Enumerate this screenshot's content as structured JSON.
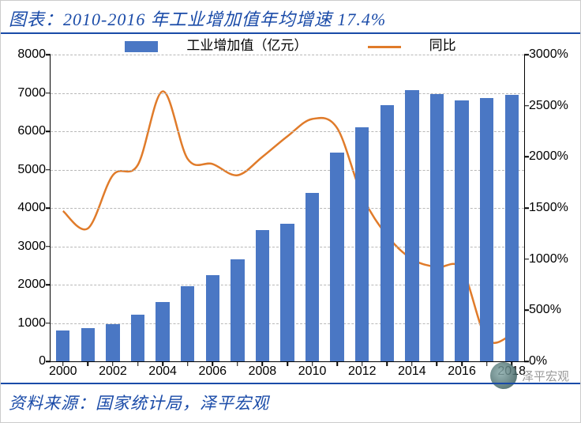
{
  "title": "图表：2010-2016 年工业增加值年均增速 17.4%",
  "source": "资料来源：国家统计局，泽平宏观",
  "watermark": "泽平宏观",
  "legend": {
    "bar_label": "工业增加值（亿元）",
    "line_label": "同比"
  },
  "chart": {
    "type": "bar+line-dual-axis",
    "background_color": "#ffffff",
    "grid_color": "#b8b8b8",
    "axis_color": "#000000",
    "bar_color": "#4a77c4",
    "line_color": "#e07b2a",
    "line_width": 2.5,
    "bar_width_ratio": 0.55,
    "title_color": "#1a4ba8",
    "font_family_axes": "Arial, sans-serif",
    "axis_fontsize": 16,
    "x": {
      "categories": [
        "2000",
        "2001",
        "2002",
        "2003",
        "2004",
        "2005",
        "2006",
        "2007",
        "2008",
        "2009",
        "2010",
        "2011",
        "2012",
        "2013",
        "2014",
        "2015",
        "2016",
        "2017",
        "2018"
      ],
      "tick_labels": [
        "2000",
        "2002",
        "2004",
        "2006",
        "2008",
        "2010",
        "2012",
        "2014",
        "2016",
        "2018"
      ],
      "tick_every": 2
    },
    "y_left": {
      "min": 0,
      "max": 8000,
      "step": 1000,
      "ticks": [
        0,
        1000,
        2000,
        3000,
        4000,
        5000,
        6000,
        7000,
        8000
      ]
    },
    "y_right": {
      "min": 0,
      "max": 3000,
      "step": 500,
      "ticks": [
        0,
        500,
        1000,
        1500,
        2000,
        2500,
        3000
      ],
      "suffix": "%"
    },
    "bar_values": [
      800,
      870,
      960,
      1210,
      1540,
      1950,
      2250,
      2650,
      3420,
      3580,
      4400,
      5450,
      6100,
      6680,
      7080,
      6970,
      6800,
      6860,
      6940
    ],
    "line_values": [
      1470,
      1300,
      1820,
      1920,
      2640,
      1980,
      1930,
      1820,
      2000,
      2200,
      2370,
      2280,
      1620,
      1230,
      1000,
      920,
      900,
      220,
      260
    ]
  }
}
